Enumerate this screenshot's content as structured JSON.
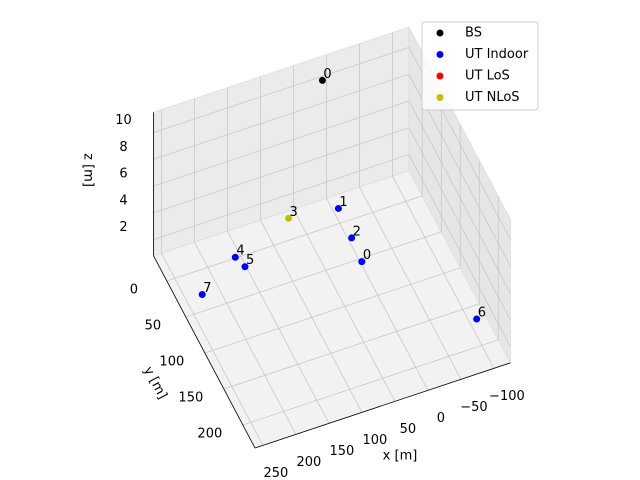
{
  "chart_data": {
    "type": "scatter3d",
    "xlabel": "x [m]",
    "ylabel": "y [m]",
    "zlabel": "z [m]",
    "xlim": [
      -125,
      262
    ],
    "ylim": [
      -35,
      232
    ],
    "zlim": [
      0.8,
      11.5
    ],
    "xticks": [
      {
        "value": -100,
        "label": "−100"
      },
      {
        "value": -50,
        "label": "−50"
      },
      0,
      50,
      100,
      150,
      200,
      250
    ],
    "yticks": [
      0,
      50,
      100,
      150,
      200
    ],
    "zticks": [
      2,
      4,
      6,
      8,
      10
    ],
    "grid": true,
    "legend": "upper right",
    "series": [
      {
        "name": "BS",
        "color": "#000000",
        "x": [
          9
        ],
        "y": [
          -30
        ],
        "z": [
          10
        ],
        "labels": [
          "0"
        ]
      },
      {
        "name": "UT Indoor",
        "color": "#0000ff",
        "x": [
          4,
          -2,
          1,
          164,
          158,
          -105,
          232
        ],
        "y": [
          65,
          -7,
          33,
          10,
          25,
          178,
          41
        ],
        "z": [
          1.5,
          1.5,
          1.5,
          1.5,
          1.5,
          1.5,
          1.5
        ],
        "labels": [
          "0",
          "1",
          "2",
          "4",
          "5",
          "6",
          "7"
        ]
      },
      {
        "name": "UT LoS",
        "color": "#ff0000",
        "x": [],
        "y": [],
        "z": [],
        "labels": []
      },
      {
        "name": "UT NLoS",
        "color": "#bfbf00",
        "x": [
          69
        ],
        "y": [
          -15
        ],
        "z": [
          1.5
        ],
        "labels": [
          "3"
        ]
      }
    ]
  }
}
